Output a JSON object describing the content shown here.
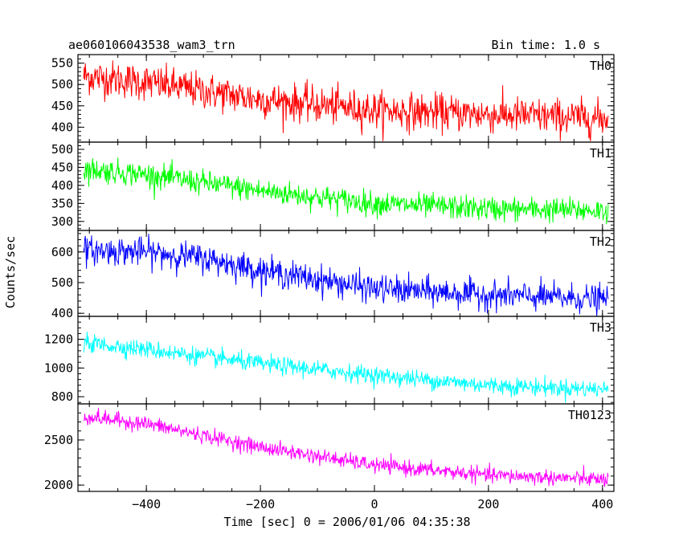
{
  "header": {
    "left_title": "ae060106043538_wam3_trn",
    "right_title": "Bin time: 1.0 s"
  },
  "chart_data": {
    "type": "line",
    "xlabel": "Time [sec] 0 = 2006/01/06 04:35:38",
    "ylabel": "Counts/sec",
    "xlim": [
      -520,
      420
    ],
    "x_ticks": [
      -400,
      -200,
      0,
      200,
      400
    ],
    "x_tick_labels": [
      "−400",
      "−200",
      "0",
      "200",
      "400"
    ],
    "bin_time_s": 1.0,
    "panels": [
      {
        "name": "TH0",
        "color": "#ff0000",
        "ylim": [
          365,
          570
        ],
        "y_ticks": [
          400,
          450,
          500,
          550
        ],
        "y_tick_labels": [
          "400",
          "450",
          "500",
          "550"
        ],
        "trend": [
          [
            -510,
            520
          ],
          [
            -400,
            505
          ],
          [
            -200,
            465
          ],
          [
            0,
            440
          ],
          [
            200,
            430
          ],
          [
            410,
            420
          ]
        ],
        "noise": 28
      },
      {
        "name": "TH1",
        "color": "#00ff00",
        "ylim": [
          275,
          520
        ],
        "y_ticks": [
          300,
          350,
          400,
          450,
          500
        ],
        "y_tick_labels": [
          "300",
          "350",
          "400",
          "450",
          "500"
        ],
        "trend": [
          [
            -510,
            445
          ],
          [
            -400,
            430
          ],
          [
            -200,
            385
          ],
          [
            0,
            350
          ],
          [
            200,
            335
          ],
          [
            410,
            330
          ]
        ],
        "noise": 22
      },
      {
        "name": "TH2",
        "color": "#0000ff",
        "ylim": [
          390,
          670
        ],
        "y_ticks": [
          400,
          500,
          600
        ],
        "y_tick_labels": [
          "400",
          "500",
          "600"
        ],
        "trend": [
          [
            -510,
            605
          ],
          [
            -400,
            600
          ],
          [
            -300,
            580
          ],
          [
            -200,
            540
          ],
          [
            -100,
            510
          ],
          [
            0,
            480
          ],
          [
            200,
            460
          ],
          [
            410,
            445
          ]
        ],
        "noise": 30
      },
      {
        "name": "TH3",
        "color": "#00ffff",
        "ylim": [
          750,
          1360
        ],
        "y_ticks": [
          800,
          1000,
          1200
        ],
        "y_tick_labels": [
          "800",
          "1000",
          "1200"
        ],
        "trend": [
          [
            -510,
            1175
          ],
          [
            -400,
            1130
          ],
          [
            -200,
            1030
          ],
          [
            0,
            950
          ],
          [
            200,
            880
          ],
          [
            410,
            850
          ]
        ],
        "noise": 40
      },
      {
        "name": "TH0123",
        "color": "#ff00ff",
        "ylim": [
          1930,
          2900
        ],
        "y_ticks": [
          2000,
          2500
        ],
        "y_tick_labels": [
          "2000",
          "2500"
        ],
        "trend": [
          [
            -510,
            2760
          ],
          [
            -400,
            2680
          ],
          [
            -200,
            2420
          ],
          [
            0,
            2220
          ],
          [
            200,
            2110
          ],
          [
            410,
            2060
          ]
        ],
        "noise": 55
      }
    ]
  }
}
